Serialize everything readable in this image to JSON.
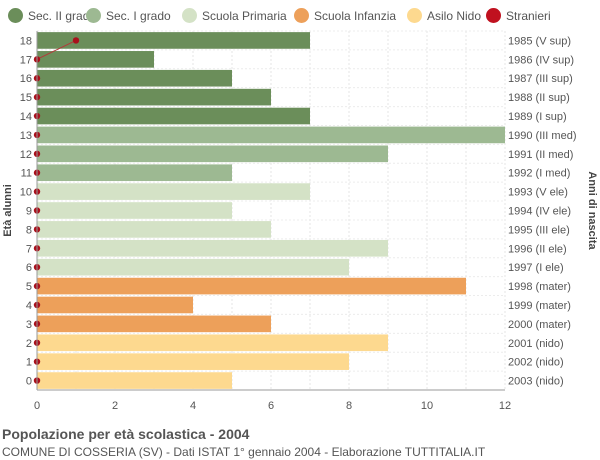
{
  "chart_data": {
    "type": "bar",
    "orientation": "horizontal",
    "title": "Popolazione per età scolastica - 2004",
    "subtitle": "COMUNE DI COSSERIA (SV) - Dati ISTAT 1° gennaio 2004 - Elaborazione TUTTITALIA.IT",
    "ylabel": "Età alunni",
    "ylabel_right": "Anni di nascita",
    "xlim": [
      0,
      12
    ],
    "x_ticks": [
      0,
      2,
      4,
      6,
      8,
      10,
      12
    ],
    "grid": true,
    "legend_position": "top",
    "legend": [
      {
        "name": "Sec. II grado",
        "color": "#6b8e5a"
      },
      {
        "name": "Sec. I grado",
        "color": "#9db992"
      },
      {
        "name": "Scuola Primaria",
        "color": "#d4e2c6"
      },
      {
        "name": "Scuola Infanzia",
        "color": "#eda05a"
      },
      {
        "name": "Asilo Nido",
        "color": "#fdd98f"
      },
      {
        "name": "Stranieri",
        "color": "#c0111f"
      }
    ],
    "categories": [
      "18",
      "17",
      "16",
      "15",
      "14",
      "13",
      "12",
      "11",
      "10",
      "9",
      "8",
      "7",
      "6",
      "5",
      "4",
      "3",
      "2",
      "1",
      "0"
    ],
    "birth_years": [
      "1985 (V sup)",
      "1986 (IV sup)",
      "1987 (III sup)",
      "1988 (II sup)",
      "1989 (I sup)",
      "1990 (III med)",
      "1991 (II med)",
      "1992 (I med)",
      "1993 (V ele)",
      "1994 (IV ele)",
      "1995 (III ele)",
      "1996 (II ele)",
      "1997 (I ele)",
      "1998 (mater)",
      "1999 (mater)",
      "2000 (mater)",
      "2001 (nido)",
      "2002 (nido)",
      "2003 (nido)"
    ],
    "values": [
      7,
      3,
      5,
      6,
      7,
      12,
      9,
      5,
      7,
      5,
      6,
      9,
      8,
      11,
      4,
      6,
      9,
      8,
      5
    ],
    "series_index": [
      0,
      0,
      0,
      0,
      0,
      1,
      1,
      1,
      2,
      2,
      2,
      2,
      2,
      3,
      3,
      3,
      4,
      4,
      4
    ],
    "stranieri": [
      1,
      0,
      0,
      0,
      0,
      0,
      0,
      0,
      0,
      0,
      0,
      0,
      0,
      0,
      0,
      0,
      0,
      0,
      0
    ]
  }
}
